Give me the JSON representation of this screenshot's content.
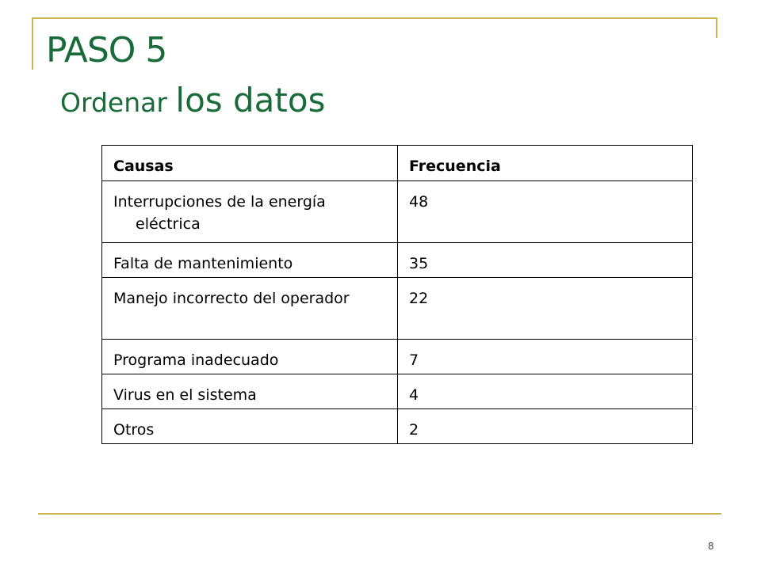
{
  "slide": {
    "title": "PASO 5",
    "subtitle_part1": "Ordenar ",
    "subtitle_part2": "los datos",
    "page_number": "8"
  },
  "table": {
    "headers": [
      "Causas",
      "Frecuencia"
    ],
    "rows": [
      {
        "cause": "Interrupciones de la energía eléctrica",
        "frequency": "48"
      },
      {
        "cause": "Falta de mantenimiento",
        "frequency": "35"
      },
      {
        "cause": "Manejo incorrecto del operador",
        "frequency": "22"
      },
      {
        "cause": "Programa inadecuado",
        "frequency": "7"
      },
      {
        "cause": "Virus en el sistema",
        "frequency": "4"
      },
      {
        "cause": "Otros",
        "frequency": "2"
      }
    ]
  },
  "colors": {
    "title": "#1a6b3a",
    "rule": "#c8b64a"
  }
}
